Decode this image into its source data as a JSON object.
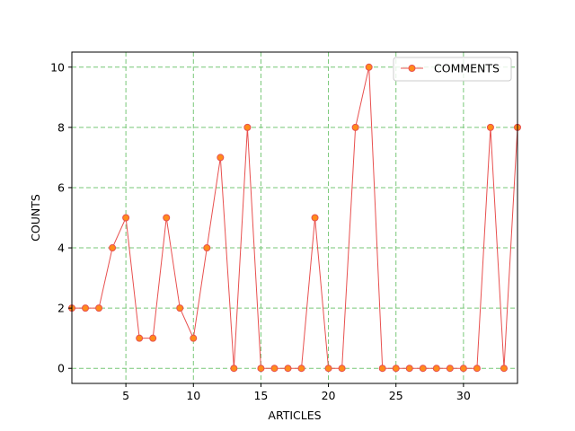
{
  "chart_data": {
    "type": "line",
    "title": "",
    "xlabel": "ARTICLES",
    "ylabel": "COUNTS",
    "xlim": [
      1,
      34
    ],
    "ylim": [
      -0.5,
      10.5
    ],
    "xticks": [
      5,
      10,
      15,
      20,
      25,
      30
    ],
    "yticks": [
      0,
      2,
      4,
      6,
      8,
      10
    ],
    "grid": true,
    "legend_position": "top-right",
    "series": [
      {
        "name": "COMMENTS",
        "line_color": "#e8504f",
        "marker_fill": "#ff8c1a",
        "marker_edge": "#e8504f",
        "x": [
          1,
          2,
          3,
          4,
          5,
          6,
          7,
          8,
          9,
          10,
          11,
          12,
          13,
          14,
          15,
          16,
          17,
          18,
          19,
          20,
          21,
          22,
          23,
          24,
          25,
          26,
          27,
          28,
          29,
          30,
          31,
          32,
          33,
          34
        ],
        "y": [
          2,
          2,
          2,
          4,
          5,
          1,
          1,
          5,
          2,
          1,
          4,
          7,
          0,
          8,
          0,
          0,
          0,
          0,
          5,
          0,
          0,
          8,
          10,
          0,
          0,
          0,
          0,
          0,
          0,
          0,
          0,
          8,
          0,
          8
        ]
      }
    ],
    "grid_color": "#77c777"
  }
}
